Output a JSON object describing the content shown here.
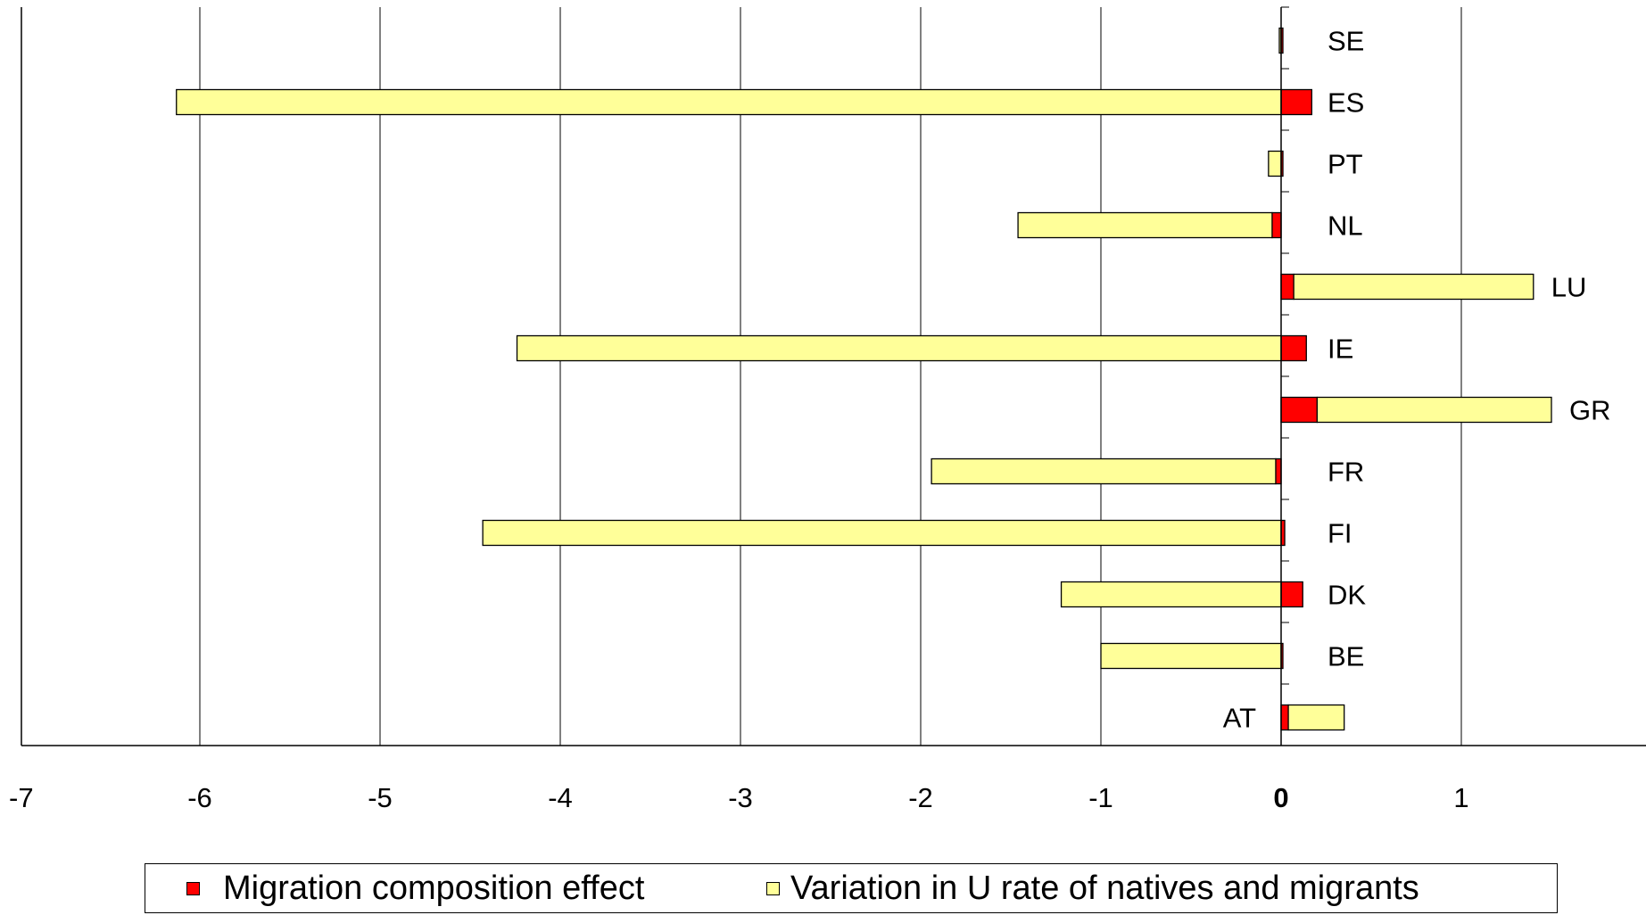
{
  "chart_data": {
    "type": "bar",
    "orientation": "horizontal",
    "stacked": true,
    "categories": [
      "SE",
      "ES",
      "PT",
      "NL",
      "LU",
      "IE",
      "GR",
      "FR",
      "FI",
      "DK",
      "BE",
      "AT"
    ],
    "series": [
      {
        "name": "Migration composition effect",
        "color": "#ff0000",
        "values": [
          0.0,
          0.17,
          0.01,
          -0.05,
          0.07,
          0.14,
          0.2,
          -0.03,
          0.02,
          0.12,
          0.0,
          0.04
        ]
      },
      {
        "name": "Variation in U rate of natives and migrants",
        "color": "#ffff99",
        "values": [
          -0.01,
          -6.13,
          -0.07,
          -1.41,
          1.33,
          -4.24,
          1.3,
          -1.91,
          -4.43,
          -1.22,
          -1.0,
          0.31
        ]
      }
    ],
    "x_ticks": [
      "-7",
      "-6",
      "-5",
      "-4",
      "-3",
      "-2",
      "-1",
      "0",
      "1"
    ],
    "xlim": [
      -7,
      2
    ],
    "grid": "vertical",
    "legend_position": "bottom"
  }
}
